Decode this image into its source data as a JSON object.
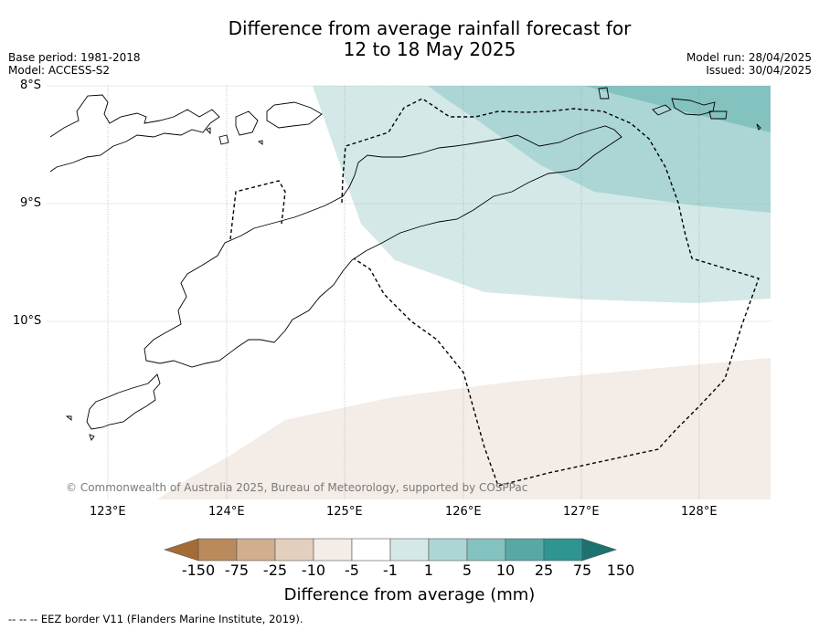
{
  "title_line1": "Difference from average rainfall forecast for",
  "title_line2": "12 to 18 May 2025",
  "base_period": "Base period: 1981-2018",
  "model": "Model: ACCESS-S2",
  "model_run": "Model run: 28/04/2025",
  "issued": "Issued: 30/04/2025",
  "lat_labels": [
    "8°S",
    "9°S",
    "10°S"
  ],
  "lon_labels": [
    "123°E",
    "124°E",
    "125°E",
    "126°E",
    "127°E",
    "128°E"
  ],
  "copyright": "© Commonwealth of Australia 2025, Bureau of Meteorology, supported by COSPPac",
  "colorbar": {
    "labels": [
      "-150",
      "-75",
      "-25",
      "-10",
      "-5",
      "-1",
      "1",
      "5",
      "10",
      "25",
      "75",
      "150"
    ],
    "colors": [
      "#a56b34",
      "#ba8a5c",
      "#d0ae8e",
      "#e3cfbd",
      "#f4ece7",
      "#ffffff",
      "#d4e9e7",
      "#acd6d5",
      "#84c2c0",
      "#58a8a6",
      "#2e9591",
      "#1c7270"
    ],
    "title": "Difference from average (mm)"
  },
  "footer": "--  --  -- EEZ border V11 (Flanders Marine Institute, 2019)."
}
